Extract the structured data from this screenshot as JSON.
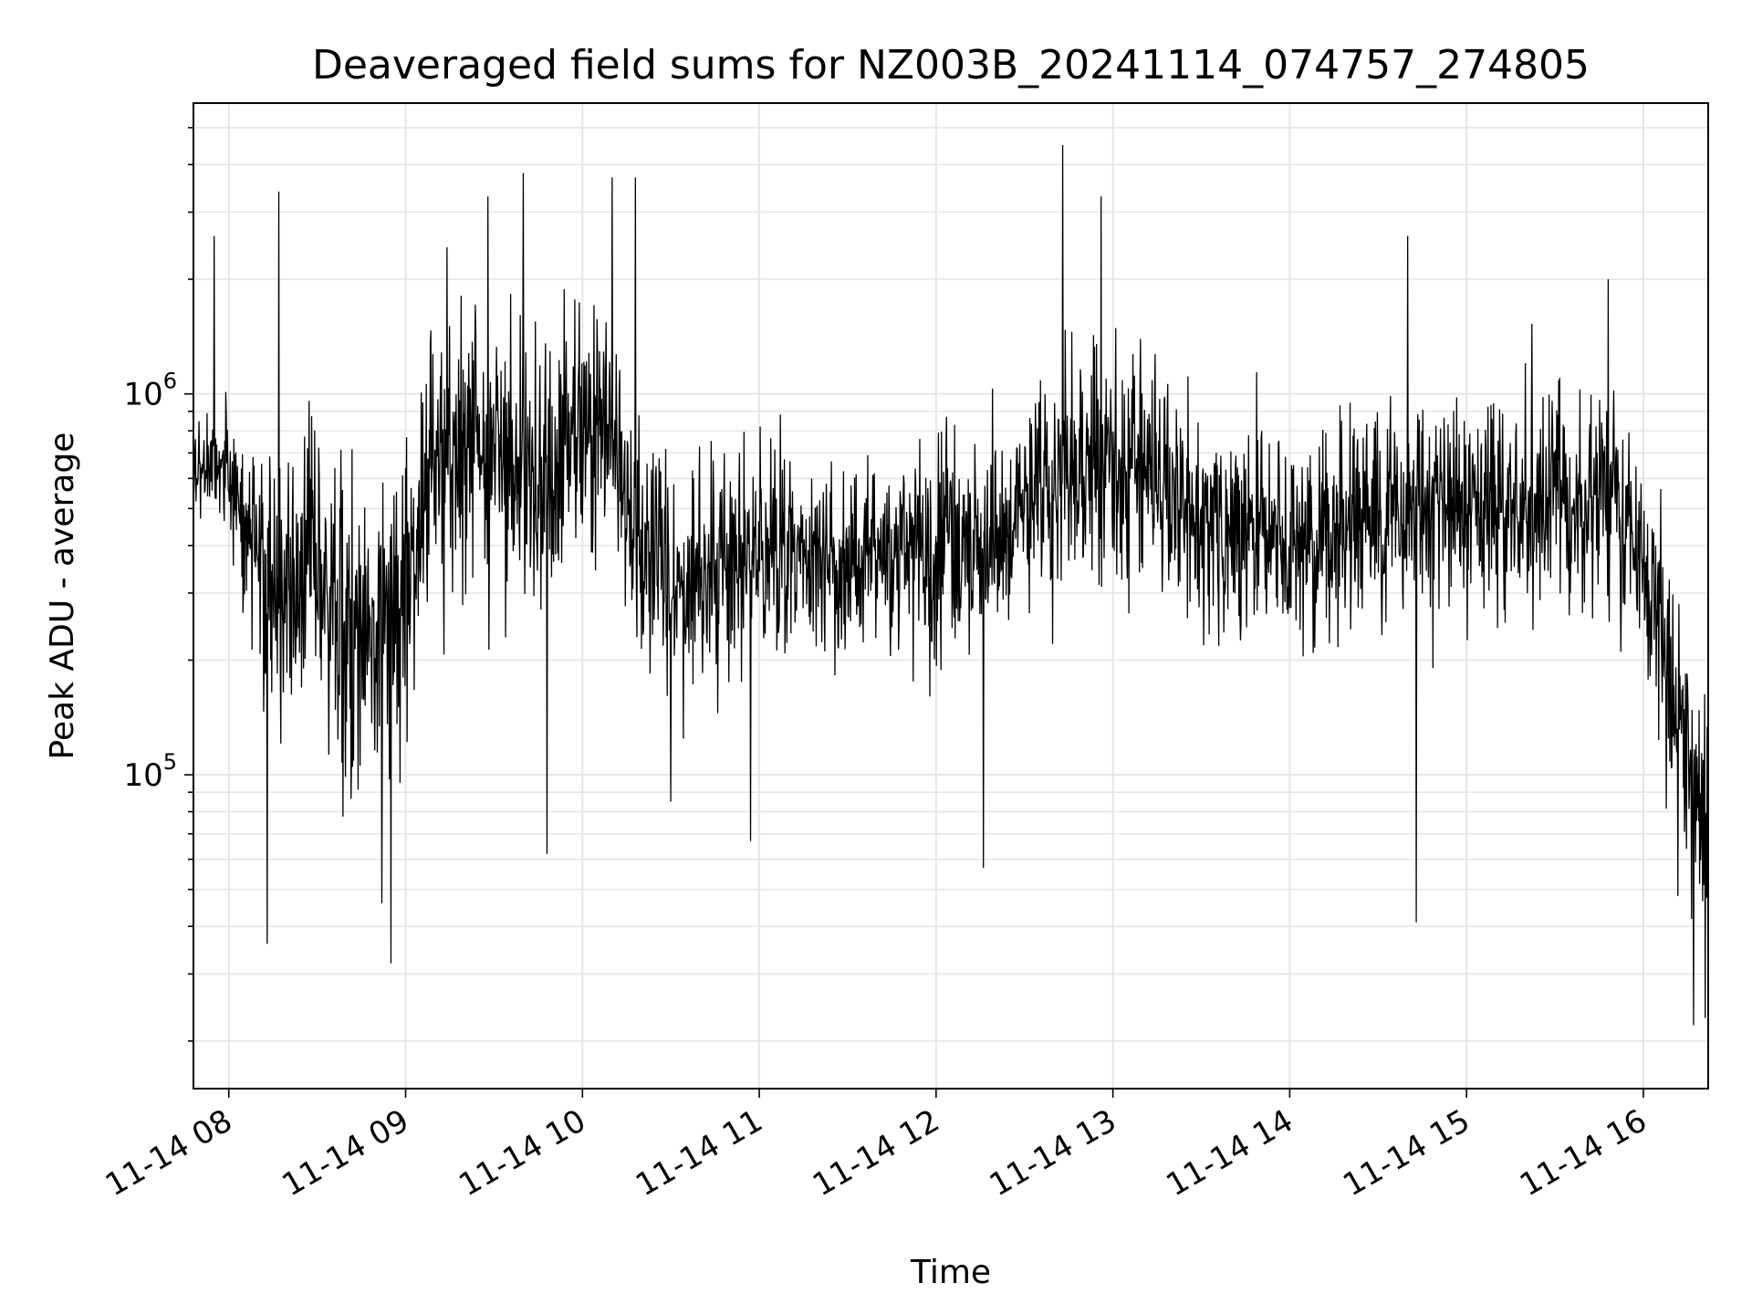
{
  "chart_data": {
    "type": "line",
    "title": "Deaveraged field sums for NZ003B_20241114_074757_274805",
    "xlabel": "Time",
    "ylabel": "Peak ADU - average",
    "yscale": "log",
    "grid": true,
    "line_color": "#000000",
    "grid_color": "#e6e6e6",
    "x_start": "2024-11-14T07:48:00",
    "x_end": "2024-11-14T16:22:00",
    "xlim": [
      "2024-11-14T07:48:00",
      "2024-11-14T16:22:00"
    ],
    "ylim": [
      15000,
      5800000
    ],
    "x_ticks": [
      {
        "time": "2024-11-14T08:00",
        "label": "11-14 08"
      },
      {
        "time": "2024-11-14T09:00",
        "label": "11-14 09"
      },
      {
        "time": "2024-11-14T10:00",
        "label": "11-14 10"
      },
      {
        "time": "2024-11-14T11:00",
        "label": "11-14 11"
      },
      {
        "time": "2024-11-14T12:00",
        "label": "11-14 12"
      },
      {
        "time": "2024-11-14T13:00",
        "label": "11-14 13"
      },
      {
        "time": "2024-11-14T14:00",
        "label": "11-14 14"
      },
      {
        "time": "2024-11-14T15:00",
        "label": "11-14 15"
      },
      {
        "time": "2024-11-14T16:00",
        "label": "11-14 16"
      }
    ],
    "y_ticks": [
      {
        "value": 100000,
        "base": "10",
        "exp": "5"
      },
      {
        "value": 1000000,
        "base": "10",
        "exp": "6"
      }
    ],
    "series": [
      {
        "envelope": [
          {
            "time": "2024-11-14T07:48",
            "median": 640000,
            "spread": 0.12
          },
          {
            "time": "2024-11-14T07:58",
            "median": 680000,
            "spread": 0.15
          },
          {
            "time": "2024-11-14T08:06",
            "median": 420000,
            "spread": 0.28
          },
          {
            "time": "2024-11-14T08:15",
            "median": 260000,
            "spread": 0.4
          },
          {
            "time": "2024-11-14T08:30",
            "median": 330000,
            "spread": 0.4
          },
          {
            "time": "2024-11-14T08:45",
            "median": 210000,
            "spread": 0.42
          },
          {
            "time": "2024-11-14T08:58",
            "median": 300000,
            "spread": 0.42
          },
          {
            "time": "2024-11-14T09:10",
            "median": 650000,
            "spread": 0.42
          },
          {
            "time": "2024-11-14T09:30",
            "median": 700000,
            "spread": 0.4
          },
          {
            "time": "2024-11-14T09:50",
            "median": 620000,
            "spread": 0.4
          },
          {
            "time": "2024-11-14T10:05",
            "median": 950000,
            "spread": 0.4
          },
          {
            "time": "2024-11-14T10:20",
            "median": 380000,
            "spread": 0.35
          },
          {
            "time": "2024-11-14T10:35",
            "median": 310000,
            "spread": 0.32
          },
          {
            "time": "2024-11-14T11:00",
            "median": 370000,
            "spread": 0.3
          },
          {
            "time": "2024-11-14T11:30",
            "median": 390000,
            "spread": 0.3
          },
          {
            "time": "2024-11-14T12:00",
            "median": 370000,
            "spread": 0.3
          },
          {
            "time": "2024-11-14T12:20",
            "median": 430000,
            "spread": 0.32
          },
          {
            "time": "2024-11-14T12:45",
            "median": 700000,
            "spread": 0.35
          },
          {
            "time": "2024-11-14T13:05",
            "median": 720000,
            "spread": 0.35
          },
          {
            "time": "2024-11-14T13:30",
            "median": 450000,
            "spread": 0.3
          },
          {
            "time": "2024-11-14T14:00",
            "median": 420000,
            "spread": 0.3
          },
          {
            "time": "2024-11-14T14:30",
            "median": 460000,
            "spread": 0.3
          },
          {
            "time": "2024-11-14T15:00",
            "median": 520000,
            "spread": 0.3
          },
          {
            "time": "2024-11-14T15:30",
            "median": 520000,
            "spread": 0.3
          },
          {
            "time": "2024-11-14T15:50",
            "median": 550000,
            "spread": 0.3
          },
          {
            "time": "2024-11-14T16:05",
            "median": 250000,
            "spread": 0.32
          },
          {
            "time": "2024-11-14T16:15",
            "median": 110000,
            "spread": 0.35
          },
          {
            "time": "2024-11-14T16:22",
            "median": 70000,
            "spread": 0.35
          }
        ],
        "notable_points": [
          {
            "time": "2024-11-14T07:55",
            "value": 2600000
          },
          {
            "time": "2024-11-14T08:13",
            "value": 36000
          },
          {
            "time": "2024-11-14T08:17",
            "value": 3400000
          },
          {
            "time": "2024-11-14T08:52",
            "value": 46000
          },
          {
            "time": "2024-11-14T08:55",
            "value": 32000
          },
          {
            "time": "2024-11-14T09:28",
            "value": 3300000
          },
          {
            "time": "2024-11-14T09:40",
            "value": 3800000
          },
          {
            "time": "2024-11-14T09:48",
            "value": 62000
          },
          {
            "time": "2024-11-14T10:10",
            "value": 3700000
          },
          {
            "time": "2024-11-14T10:18",
            "value": 3700000
          },
          {
            "time": "2024-11-14T10:30",
            "value": 85000
          },
          {
            "time": "2024-11-14T10:57",
            "value": 67000
          },
          {
            "time": "2024-11-14T12:16",
            "value": 57000
          },
          {
            "time": "2024-11-14T12:43",
            "value": 4500000
          },
          {
            "time": "2024-11-14T12:56",
            "value": 3300000
          },
          {
            "time": "2024-11-14T14:40",
            "value": 2600000
          },
          {
            "time": "2024-11-14T14:43",
            "value": 41000
          },
          {
            "time": "2024-11-14T15:48",
            "value": 2000000
          },
          {
            "time": "2024-11-14T16:17",
            "value": 22000
          },
          {
            "time": "2024-11-14T16:21",
            "value": 23000
          }
        ]
      }
    ]
  }
}
